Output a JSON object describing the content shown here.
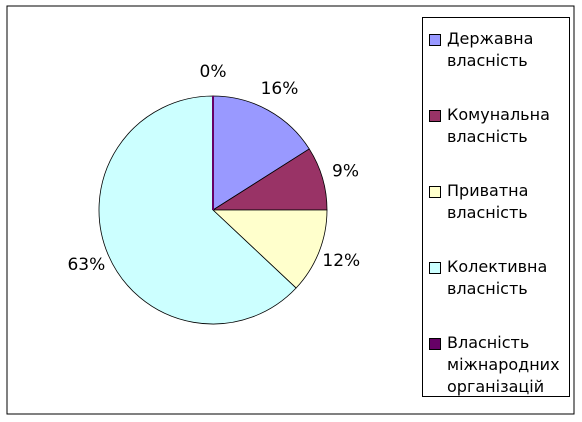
{
  "chart_data": {
    "type": "pie",
    "categories": [
      "Державна власність",
      "Комунальна власність",
      "Приватна власність",
      "Колективна власність",
      "Власність міжнародних організацій"
    ],
    "values": [
      16,
      9,
      12,
      63,
      0
    ],
    "value_labels": [
      "16%",
      "9%",
      "12%",
      "63%",
      "0%"
    ],
    "colors": [
      "#9999ff",
      "#993366",
      "#ffffcc",
      "#ccffff",
      "#660066"
    ],
    "legend": "right"
  }
}
